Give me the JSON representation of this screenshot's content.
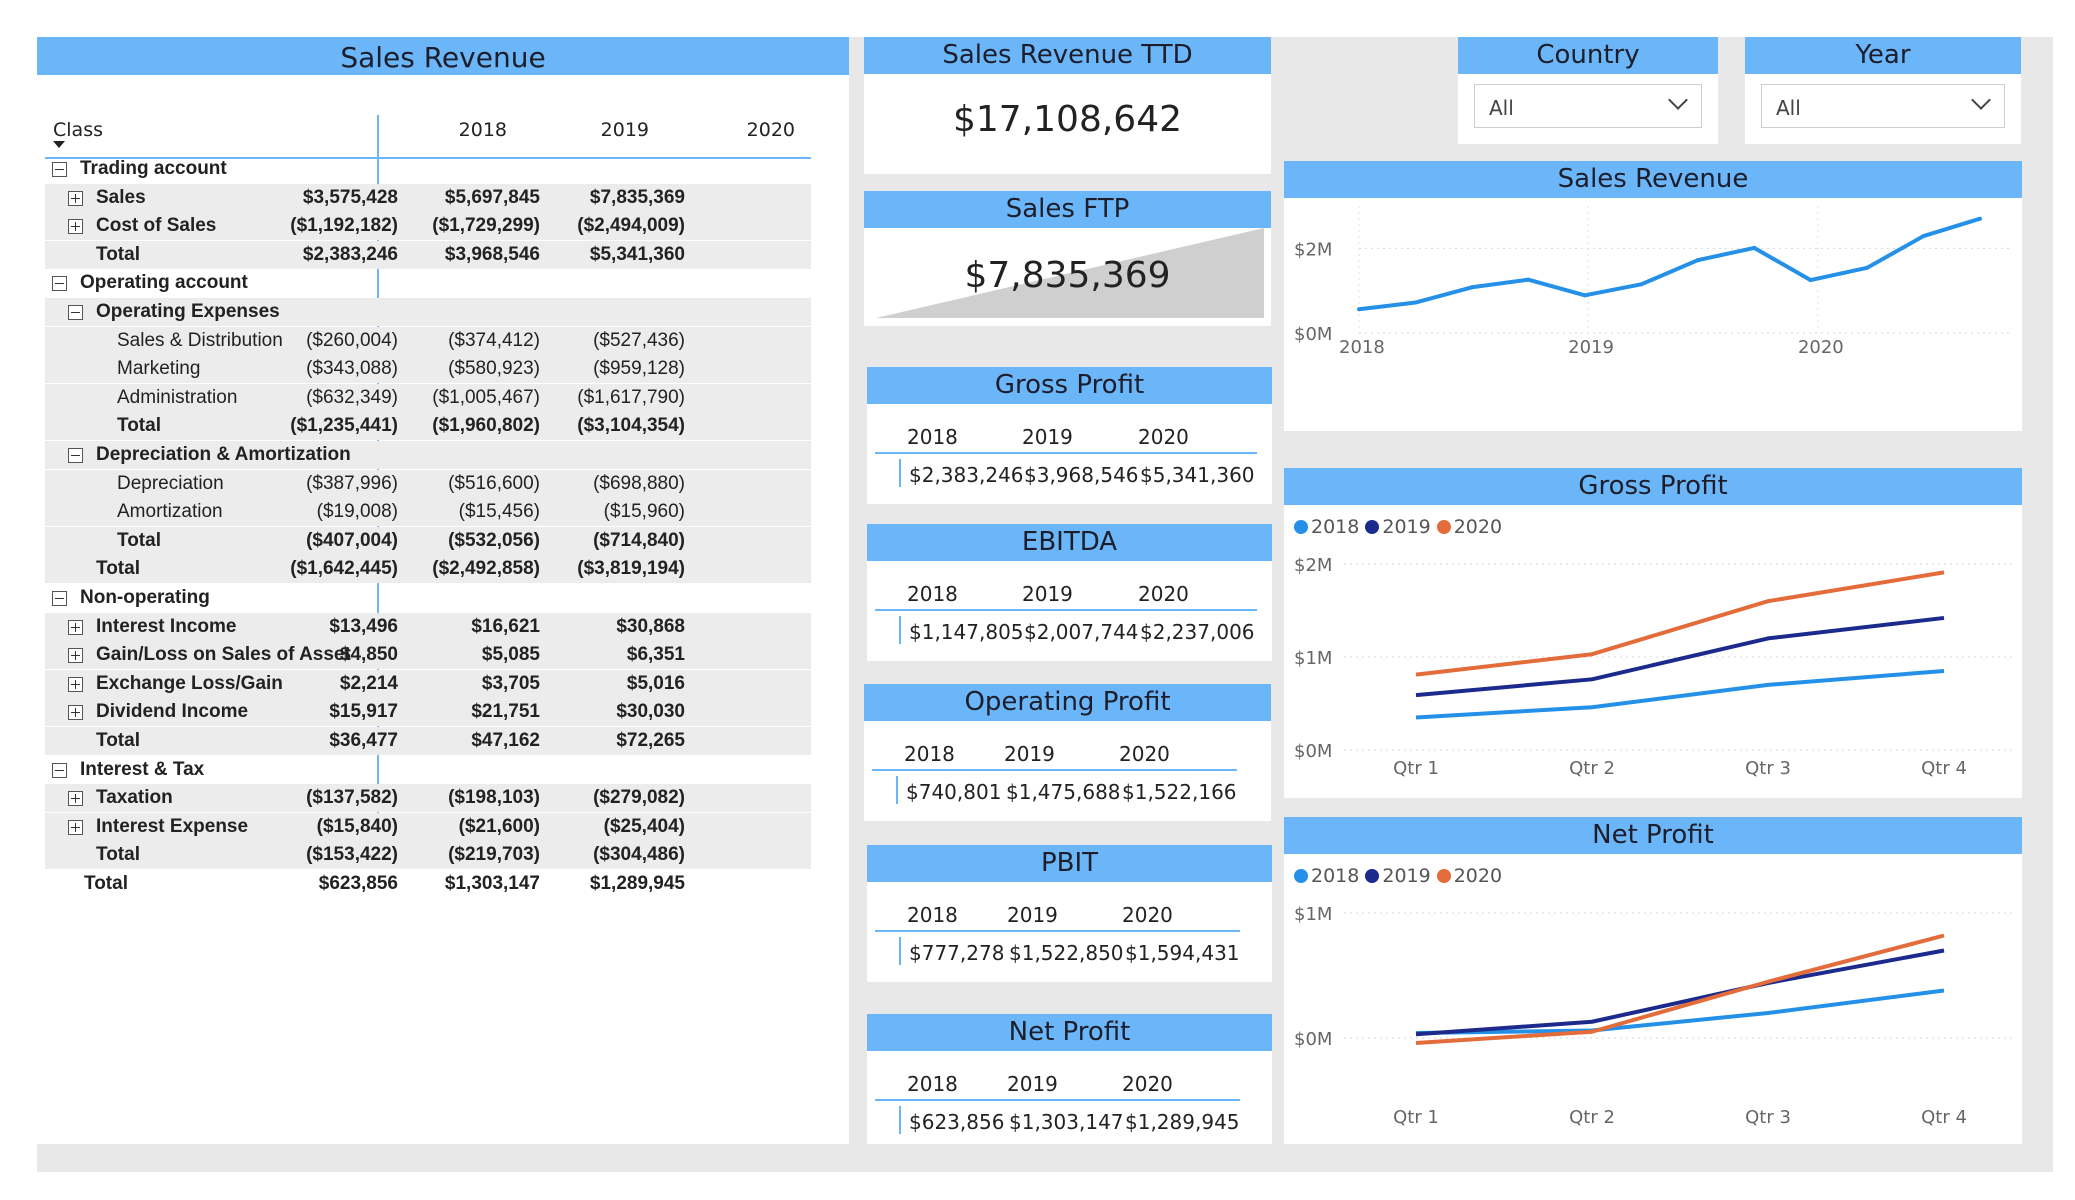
{
  "matrix": {
    "title": "Sales Revenue",
    "column_label": "Class",
    "years": [
      "2018",
      "2019",
      "2020"
    ],
    "rows": [
      {
        "level": 0,
        "toggle": "minus",
        "bold": true,
        "label": "Trading account",
        "values": [
          "",
          "",
          ""
        ]
      },
      {
        "level": 1,
        "toggle": "plus",
        "bold": true,
        "label": "Sales",
        "values": [
          "$3,575,428",
          "$5,697,845",
          "$7,835,369"
        ]
      },
      {
        "level": 1,
        "toggle": "plus",
        "bold": true,
        "label": "Cost of Sales",
        "values": [
          "($1,192,182)",
          "($1,729,299)",
          "($2,494,009)"
        ]
      },
      {
        "level": 1,
        "toggle": "",
        "bold": true,
        "label": "Total",
        "values": [
          "$2,383,246",
          "$3,968,546",
          "$5,341,360"
        ]
      },
      {
        "level": 0,
        "toggle": "minus",
        "bold": true,
        "label": "Operating account",
        "values": [
          "",
          "",
          ""
        ]
      },
      {
        "level": 1,
        "toggle": "minus",
        "bold": true,
        "label": "Operating Expenses",
        "values": [
          "",
          "",
          ""
        ]
      },
      {
        "level": 2,
        "toggle": "",
        "bold": false,
        "label": "Sales & Distribution",
        "values": [
          "($260,004)",
          "($374,412)",
          "($527,436)"
        ]
      },
      {
        "level": 2,
        "toggle": "",
        "bold": false,
        "label": "Marketing",
        "values": [
          "($343,088)",
          "($580,923)",
          "($959,128)"
        ]
      },
      {
        "level": 2,
        "toggle": "",
        "bold": false,
        "label": "Administration",
        "values": [
          "($632,349)",
          "($1,005,467)",
          "($1,617,790)"
        ]
      },
      {
        "level": 2,
        "toggle": "",
        "bold": true,
        "label": "Total",
        "values": [
          "($1,235,441)",
          "($1,960,802)",
          "($3,104,354)"
        ]
      },
      {
        "level": 1,
        "toggle": "minus",
        "bold": true,
        "label": "Depreciation & Amortization",
        "values": [
          "",
          "",
          ""
        ]
      },
      {
        "level": 2,
        "toggle": "",
        "bold": false,
        "label": "Depreciation",
        "values": [
          "($387,996)",
          "($516,600)",
          "($698,880)"
        ]
      },
      {
        "level": 2,
        "toggle": "",
        "bold": false,
        "label": "Amortization",
        "values": [
          "($19,008)",
          "($15,456)",
          "($15,960)"
        ]
      },
      {
        "level": 2,
        "toggle": "",
        "bold": true,
        "label": "Total",
        "values": [
          "($407,004)",
          "($532,056)",
          "($714,840)"
        ]
      },
      {
        "level": 1,
        "toggle": "",
        "bold": true,
        "label": "Total",
        "values": [
          "($1,642,445)",
          "($2,492,858)",
          "($3,819,194)"
        ]
      },
      {
        "level": 0,
        "toggle": "minus",
        "bold": true,
        "label": "Non-operating",
        "values": [
          "",
          "",
          ""
        ]
      },
      {
        "level": 1,
        "toggle": "plus",
        "bold": true,
        "label": "Interest Income",
        "values": [
          "$13,496",
          "$16,621",
          "$30,868"
        ]
      },
      {
        "level": 1,
        "toggle": "plus",
        "bold": true,
        "label": "Gain/Loss on Sales of Asset",
        "values": [
          "$4,850",
          "$5,085",
          "$6,351"
        ]
      },
      {
        "level": 1,
        "toggle": "plus",
        "bold": true,
        "label": "Exchange Loss/Gain",
        "values": [
          "$2,214",
          "$3,705",
          "$5,016"
        ]
      },
      {
        "level": 1,
        "toggle": "plus",
        "bold": true,
        "label": "Dividend Income",
        "values": [
          "$15,917",
          "$21,751",
          "$30,030"
        ]
      },
      {
        "level": 1,
        "toggle": "",
        "bold": true,
        "label": "Total",
        "values": [
          "$36,477",
          "$47,162",
          "$72,265"
        ]
      },
      {
        "level": 0,
        "toggle": "minus",
        "bold": true,
        "label": "Interest & Tax",
        "values": [
          "",
          "",
          ""
        ]
      },
      {
        "level": 1,
        "toggle": "plus",
        "bold": true,
        "label": "Taxation",
        "values": [
          "($137,582)",
          "($198,103)",
          "($279,082)"
        ]
      },
      {
        "level": 1,
        "toggle": "plus",
        "bold": true,
        "label": "Interest Expense",
        "values": [
          "($15,840)",
          "($21,600)",
          "($25,404)"
        ]
      },
      {
        "level": 1,
        "toggle": "",
        "bold": true,
        "label": "Total",
        "values": [
          "($153,422)",
          "($219,703)",
          "($304,486)"
        ]
      },
      {
        "level": 0,
        "toggle": "",
        "bold": true,
        "label": "Total",
        "values": [
          "$623,856",
          "$1,303,147",
          "$1,289,945"
        ]
      }
    ]
  },
  "cards": {
    "ttd": {
      "title": "Sales Revenue TTD",
      "value": "$17,108,642"
    },
    "ftp": {
      "title": "Sales FTP",
      "value": "$7,835,369"
    }
  },
  "kpi_tables": [
    {
      "id": "gross-profit",
      "title": "Gross Profit",
      "years": [
        "2018",
        "2019",
        "2020"
      ],
      "values": [
        "$2,383,246",
        "$3,968,546",
        "$5,341,360"
      ]
    },
    {
      "id": "ebitda",
      "title": "EBITDA",
      "years": [
        "2018",
        "2019",
        "2020"
      ],
      "values": [
        "$1,147,805",
        "$2,007,744",
        "$2,237,006"
      ]
    },
    {
      "id": "operating-profit",
      "title": "Operating Profit",
      "years": [
        "2018",
        "2019",
        "2020"
      ],
      "values": [
        "$740,801",
        "$1,475,688",
        "$1,522,166"
      ]
    },
    {
      "id": "pbit",
      "title": "PBIT",
      "years": [
        "2018",
        "2019",
        "2020"
      ],
      "values": [
        "$777,278",
        "$1,522,850",
        "$1,594,431"
      ]
    },
    {
      "id": "net-profit",
      "title": "Net Profit",
      "years": [
        "2018",
        "2019",
        "2020"
      ],
      "values": [
        "$623,856",
        "$1,303,147",
        "$1,289,945"
      ]
    }
  ],
  "slicers": {
    "country": {
      "title": "Country",
      "value": "All",
      "icon": "chevron-down-icon"
    },
    "year": {
      "title": "Year",
      "value": "All",
      "icon": "chevron-down-icon"
    }
  },
  "colors": {
    "header": "#6ab6f8",
    "y2018": "#2490e8",
    "y2019": "#1b2a8c",
    "y2020": "#e36c3a"
  },
  "chart_data": [
    {
      "id": "sales-revenue-chart",
      "type": "line",
      "title": "Sales Revenue",
      "x_ticks": [
        "2018",
        "2019",
        "2020"
      ],
      "y_ticks": [
        "$0M",
        "$2M"
      ],
      "ylim": [
        0,
        3000000
      ],
      "grid": true,
      "series": [
        {
          "values": [
            560000,
            720000,
            1080000,
            1260000,
            890000,
            1150000,
            1720000,
            2010000,
            1250000,
            1540000,
            2290000,
            2700000
          ]
        }
      ]
    },
    {
      "id": "gross-profit-chart",
      "type": "line",
      "title": "Gross Profit",
      "categories": [
        "Qtr 1",
        "Qtr 2",
        "Qtr 3",
        "Qtr 4"
      ],
      "y_ticks": [
        "$0M",
        "$1M",
        "$2M"
      ],
      "ylim": [
        0,
        2000000
      ],
      "grid": true,
      "legend": "top-left",
      "series": [
        {
          "name": "2018",
          "values": [
            350000,
            460000,
            700000,
            850000
          ]
        },
        {
          "name": "2019",
          "values": [
            590000,
            760000,
            1200000,
            1420000
          ]
        },
        {
          "name": "2020",
          "values": [
            810000,
            1030000,
            1600000,
            1910000
          ]
        }
      ]
    },
    {
      "id": "net-profit-chart",
      "type": "line",
      "title": "Net Profit",
      "categories": [
        "Qtr 1",
        "Qtr 2",
        "Qtr 3",
        "Qtr 4"
      ],
      "y_ticks": [
        "$0M",
        "$1M"
      ],
      "ylim": [
        0,
        1000000
      ],
      "grid": true,
      "legend": "top-left",
      "series": [
        {
          "name": "2018",
          "values": [
            40000,
            60000,
            200000,
            380000
          ]
        },
        {
          "name": "2019",
          "values": [
            30000,
            130000,
            440000,
            700000
          ]
        },
        {
          "name": "2020",
          "values": [
            -40000,
            50000,
            450000,
            820000
          ]
        }
      ]
    }
  ]
}
